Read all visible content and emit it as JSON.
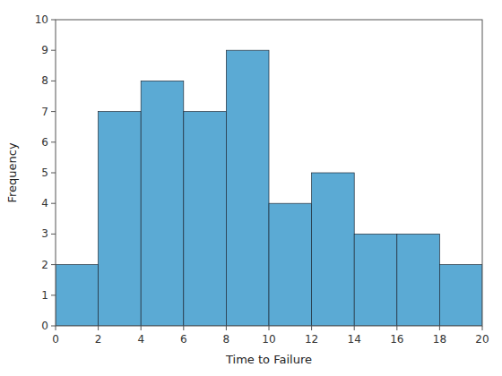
{
  "chart_data": {
    "type": "histogram",
    "bins": [
      0,
      2,
      4,
      6,
      8,
      10,
      12,
      14,
      16,
      18,
      20
    ],
    "values": [
      2,
      7,
      8,
      7,
      9,
      4,
      5,
      3,
      3,
      2
    ],
    "color": "#5BAAD4",
    "xlabel": "Time to Failure",
    "ylabel": "Frequency",
    "xlim": [
      0,
      20
    ],
    "ylim": [
      0,
      10
    ],
    "xticks": [
      0,
      2,
      4,
      6,
      8,
      10,
      12,
      14,
      16,
      18,
      20
    ],
    "yticks": [
      0,
      1,
      2,
      3,
      4,
      5,
      6,
      7,
      8,
      9,
      10
    ],
    "grid": false
  }
}
